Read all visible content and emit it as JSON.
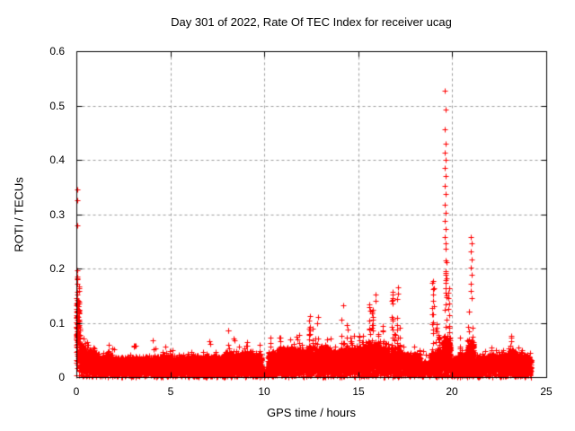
{
  "chart_data": {
    "type": "scatter",
    "title": "Day 301 of 2022, Rate Of TEC Index for receiver ucag",
    "xlabel": "GPS time / hours",
    "ylabel": "ROTI / TECUs",
    "xlim": [
      0,
      25
    ],
    "ylim": [
      0,
      0.6
    ],
    "xticks": {
      "values": [
        0,
        5,
        10,
        15,
        20,
        25
      ],
      "labels": [
        "0",
        "5",
        "10",
        "15",
        "20",
        "25"
      ]
    },
    "yticks": {
      "values": [
        0,
        0.1,
        0.2,
        0.3,
        0.4,
        0.5,
        0.6
      ],
      "labels": [
        "0",
        "0.1",
        "0.2",
        "0.3",
        "0.4",
        "0.5",
        "0.6"
      ]
    },
    "grid": {
      "show": true,
      "style": "dashed",
      "color": "#9e9e9e"
    },
    "marker": {
      "shape": "plus",
      "color": "#ff0000",
      "size": 7
    },
    "colors": {
      "background": "#ffffff",
      "frame": "#000000",
      "text": "#000000"
    },
    "data_time_range_hours": [
      0,
      24.2
    ],
    "seed": 301,
    "band_density_points_per_hour": 430,
    "band_segments_format": [
      "t_start_h",
      "t_end_h",
      "dense_band_top_tecu",
      "spike_max_tecu",
      "density_factor"
    ],
    "band_segments": [
      [
        0.0,
        0.15,
        0.155,
        0.2,
        1.5
      ],
      [
        0.15,
        0.5,
        0.055,
        0.095,
        1.2
      ],
      [
        0.5,
        1.0,
        0.045,
        0.085,
        1
      ],
      [
        1.0,
        2.0,
        0.038,
        0.065,
        1
      ],
      [
        2.0,
        3.0,
        0.035,
        0.058,
        1
      ],
      [
        3.0,
        4.0,
        0.035,
        0.062,
        1
      ],
      [
        4.0,
        5.0,
        0.036,
        0.07,
        1
      ],
      [
        5.0,
        6.0,
        0.035,
        0.06,
        1
      ],
      [
        6.0,
        7.0,
        0.036,
        0.066,
        1
      ],
      [
        7.0,
        8.0,
        0.037,
        0.072,
        1
      ],
      [
        8.0,
        9.0,
        0.042,
        0.09,
        1
      ],
      [
        9.0,
        9.85,
        0.042,
        0.092,
        1
      ],
      [
        9.85,
        10.2,
        0.015,
        0.03,
        0.25
      ],
      [
        10.2,
        10.75,
        0.042,
        0.075,
        1
      ],
      [
        10.75,
        11.25,
        0.05,
        0.088,
        1
      ],
      [
        11.25,
        11.8,
        0.05,
        0.098,
        1
      ],
      [
        11.8,
        12.3,
        0.046,
        0.082,
        1
      ],
      [
        12.3,
        12.8,
        0.05,
        0.12,
        1
      ],
      [
        12.8,
        13.5,
        0.05,
        0.115,
        1
      ],
      [
        13.5,
        14.0,
        0.046,
        0.082,
        1
      ],
      [
        14.0,
        14.5,
        0.05,
        0.135,
        1
      ],
      [
        14.5,
        15.0,
        0.05,
        0.092,
        1
      ],
      [
        15.0,
        15.5,
        0.055,
        0.105,
        1
      ],
      [
        15.5,
        16.2,
        0.06,
        0.155,
        1.1
      ],
      [
        16.2,
        16.7,
        0.05,
        0.122,
        1
      ],
      [
        16.7,
        17.35,
        0.05,
        0.168,
        1
      ],
      [
        17.35,
        18.3,
        0.04,
        0.072,
        1
      ],
      [
        18.3,
        18.8,
        0.025,
        0.05,
        0.6
      ],
      [
        18.8,
        19.2,
        0.042,
        0.18,
        1
      ],
      [
        19.2,
        19.5,
        0.05,
        0.12,
        1
      ],
      [
        19.5,
        19.9,
        0.07,
        0.225,
        1.3
      ],
      [
        19.9,
        20.3,
        0.032,
        0.055,
        0.8
      ],
      [
        20.3,
        20.8,
        0.04,
        0.078,
        1
      ],
      [
        20.8,
        21.15,
        0.06,
        0.135,
        1.2
      ],
      [
        21.15,
        22.0,
        0.036,
        0.062,
        1
      ],
      [
        22.0,
        23.0,
        0.04,
        0.07,
        1
      ],
      [
        23.0,
        23.4,
        0.046,
        0.08,
        1
      ],
      [
        23.4,
        24.0,
        0.04,
        0.066,
        1
      ],
      [
        24.0,
        24.2,
        0.035,
        0.05,
        0.9
      ]
    ],
    "outliers_format": [
      "t_hours",
      "roti_tecu"
    ],
    "outliers": [
      [
        0.03,
        0.346
      ],
      [
        0.04,
        0.325
      ],
      [
        0.03,
        0.28
      ],
      [
        0.05,
        0.196
      ],
      [
        0.06,
        0.185
      ],
      [
        19.62,
        0.527
      ],
      [
        19.65,
        0.492
      ],
      [
        19.6,
        0.457
      ],
      [
        19.64,
        0.43
      ],
      [
        19.62,
        0.414
      ],
      [
        19.63,
        0.4
      ],
      [
        19.61,
        0.385
      ],
      [
        19.64,
        0.371
      ],
      [
        19.62,
        0.352
      ],
      [
        19.65,
        0.337
      ],
      [
        19.6,
        0.318
      ],
      [
        19.63,
        0.302
      ],
      [
        19.62,
        0.287
      ],
      [
        19.64,
        0.272
      ],
      [
        19.61,
        0.258
      ],
      [
        19.63,
        0.247
      ],
      [
        19.65,
        0.236
      ],
      [
        21.0,
        0.258
      ],
      [
        21.02,
        0.246
      ],
      [
        20.99,
        0.231
      ],
      [
        21.01,
        0.216
      ],
      [
        21.0,
        0.202
      ],
      [
        21.02,
        0.188
      ],
      [
        20.98,
        0.172
      ],
      [
        21.0,
        0.158
      ],
      [
        21.01,
        0.146
      ],
      [
        19.0,
        0.177
      ],
      [
        19.02,
        0.164
      ],
      [
        18.98,
        0.152
      ],
      [
        19.0,
        0.141
      ],
      [
        19.01,
        0.131
      ],
      [
        17.1,
        0.165
      ],
      [
        17.12,
        0.154
      ],
      [
        17.08,
        0.143
      ],
      [
        15.9,
        0.152
      ],
      [
        15.92,
        0.141
      ],
      [
        14.2,
        0.133
      ]
    ]
  }
}
